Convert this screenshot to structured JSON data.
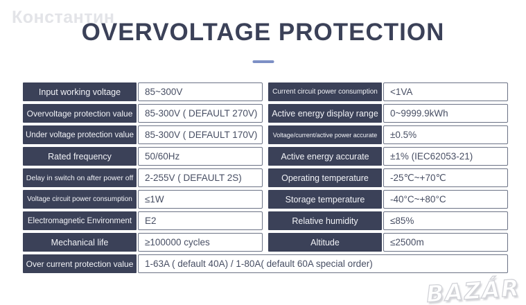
{
  "watermark": "Константин",
  "brand_watermark": "BAZÁR",
  "header": {
    "title": "OVERVOLTAGE PROTECTION"
  },
  "colors": {
    "navy": "#3b4158",
    "underline": "#7d90c5",
    "border": "#6a7184",
    "value_text": "#474e63"
  },
  "table": {
    "left_rows": [
      {
        "label": "Input working voltage",
        "value": "85~300V"
      },
      {
        "label": "Overvoltage protection value",
        "value": "85-300V ( DEFAULT 270V)"
      },
      {
        "label": "Under voltage protection value",
        "value": "85-300V ( DEFAULT 170V)"
      },
      {
        "label": "Rated frequency",
        "value": "50/60Hz"
      },
      {
        "label": "Delay in switch on after power off",
        "value": "2-255V ( DEFAULT 2S)"
      },
      {
        "label": "Voltage circuit power consumption",
        "value": "≤1W"
      },
      {
        "label": "Electromagnetic Environment",
        "value": "E2"
      },
      {
        "label": "Mechanical life",
        "value": "≥100000 cycles"
      }
    ],
    "right_rows": [
      {
        "label": "Current circuit power consumption",
        "value": "<1VA"
      },
      {
        "label": "Active energy display range",
        "value": "0~9999.9kWh"
      },
      {
        "label": "Voltage/current/active power accurate",
        "value": "±0.5%"
      },
      {
        "label": "Active energy accurate",
        "value": "±1%  (IEC62053-21)"
      },
      {
        "label": "Operating temperature",
        "value": "-25℃~+70℃"
      },
      {
        "label": "Storage temperature",
        "value": "-40°C~+80°C"
      },
      {
        "label": "Relative humidity",
        "value": "≤85%"
      },
      {
        "label": "Altitude",
        "value": "≤2500m"
      }
    ],
    "bottom_row": {
      "label": "Over current protection value",
      "value": "1-63A ( default 40A)  / 1-80A( default 60A special order)"
    }
  }
}
